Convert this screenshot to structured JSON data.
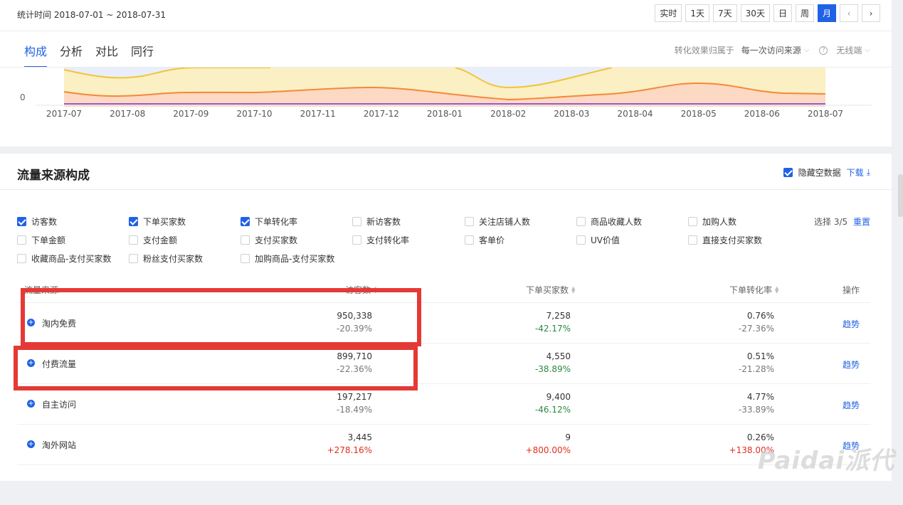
{
  "header": {
    "period": "统计时间 2018-07-01 ~ 2018-07-31",
    "time_buttons": [
      "实时",
      "1天",
      "7天",
      "30天",
      "日",
      "周",
      "月"
    ],
    "active_time": "月"
  },
  "tabs": [
    "构成",
    "分析",
    "对比",
    "同行"
  ],
  "active_tab": "构成",
  "attribution": {
    "label": "转化效果归属于",
    "value": "每一次访问来源",
    "help": "?",
    "device": "无线端"
  },
  "chart_data": {
    "type": "area",
    "x": [
      "2017-07",
      "2017-08",
      "2017-09",
      "2017-10",
      "2017-11",
      "2017-12",
      "2018-01",
      "2018-02",
      "2018-03",
      "2018-04",
      "2018-05",
      "2018-06",
      "2018-07"
    ],
    "y_tick_visible": "0",
    "colors": {
      "yellow": "#f5c842",
      "orange": "#f59a4a",
      "blue_fill": "#e6eefb",
      "purple": "#9b59d0"
    }
  },
  "section": {
    "title": "流量来源构成",
    "hide_empty_label": "隐藏空数据",
    "hide_empty_checked": true,
    "download": "下载"
  },
  "metrics": [
    {
      "label": "访客数",
      "checked": true
    },
    {
      "label": "下单买家数",
      "checked": true
    },
    {
      "label": "下单转化率",
      "checked": true
    },
    {
      "label": "新访客数",
      "checked": false
    },
    {
      "label": "关注店铺人数",
      "checked": false
    },
    {
      "label": "商品收藏人数",
      "checked": false
    },
    {
      "label": "加购人数",
      "checked": false
    },
    {
      "label": "下单金额",
      "checked": false
    },
    {
      "label": "支付金额",
      "checked": false
    },
    {
      "label": "支付买家数",
      "checked": false
    },
    {
      "label": "支付转化率",
      "checked": false
    },
    {
      "label": "客单价",
      "checked": false
    },
    {
      "label": "UV价值",
      "checked": false
    },
    {
      "label": "直接支付买家数",
      "checked": false
    },
    {
      "label": "收藏商品-支付买家数",
      "checked": false
    },
    {
      "label": "粉丝支付买家数",
      "checked": false
    },
    {
      "label": "加购商品-支付买家数",
      "checked": false
    }
  ],
  "selection": {
    "count": "选择 3/5",
    "reset": "重置"
  },
  "table": {
    "headers": {
      "source": "流量来源",
      "visitors": "访客数",
      "buyers": "下单买家数",
      "rate": "下单转化率",
      "action": "操作"
    },
    "rows": [
      {
        "source": "淘内免费",
        "visitors": "950,338",
        "visitors_change": "-20.39%",
        "buyers": "7,258",
        "buyers_change": "-42.17%",
        "rate": "0.76%",
        "rate_change": "-27.36%",
        "action": "趋势"
      },
      {
        "source": "付费流量",
        "visitors": "899,710",
        "visitors_change": "-22.36%",
        "buyers": "4,550",
        "buyers_change": "-38.89%",
        "rate": "0.51%",
        "rate_change": "-21.28%",
        "action": "趋势"
      },
      {
        "source": "自主访问",
        "visitors": "197,217",
        "visitors_change": "-18.49%",
        "buyers": "9,400",
        "buyers_change": "-46.12%",
        "rate": "4.77%",
        "rate_change": "-33.89%",
        "action": "趋势"
      },
      {
        "source": "淘外网站",
        "visitors": "3,445",
        "visitors_change": "+278.16%",
        "buyers": "9",
        "buyers_change": "+800.00%",
        "rate": "0.26%",
        "rate_change": "+138.00%",
        "action": "趋势"
      }
    ]
  },
  "watermark": "Paidai派代"
}
